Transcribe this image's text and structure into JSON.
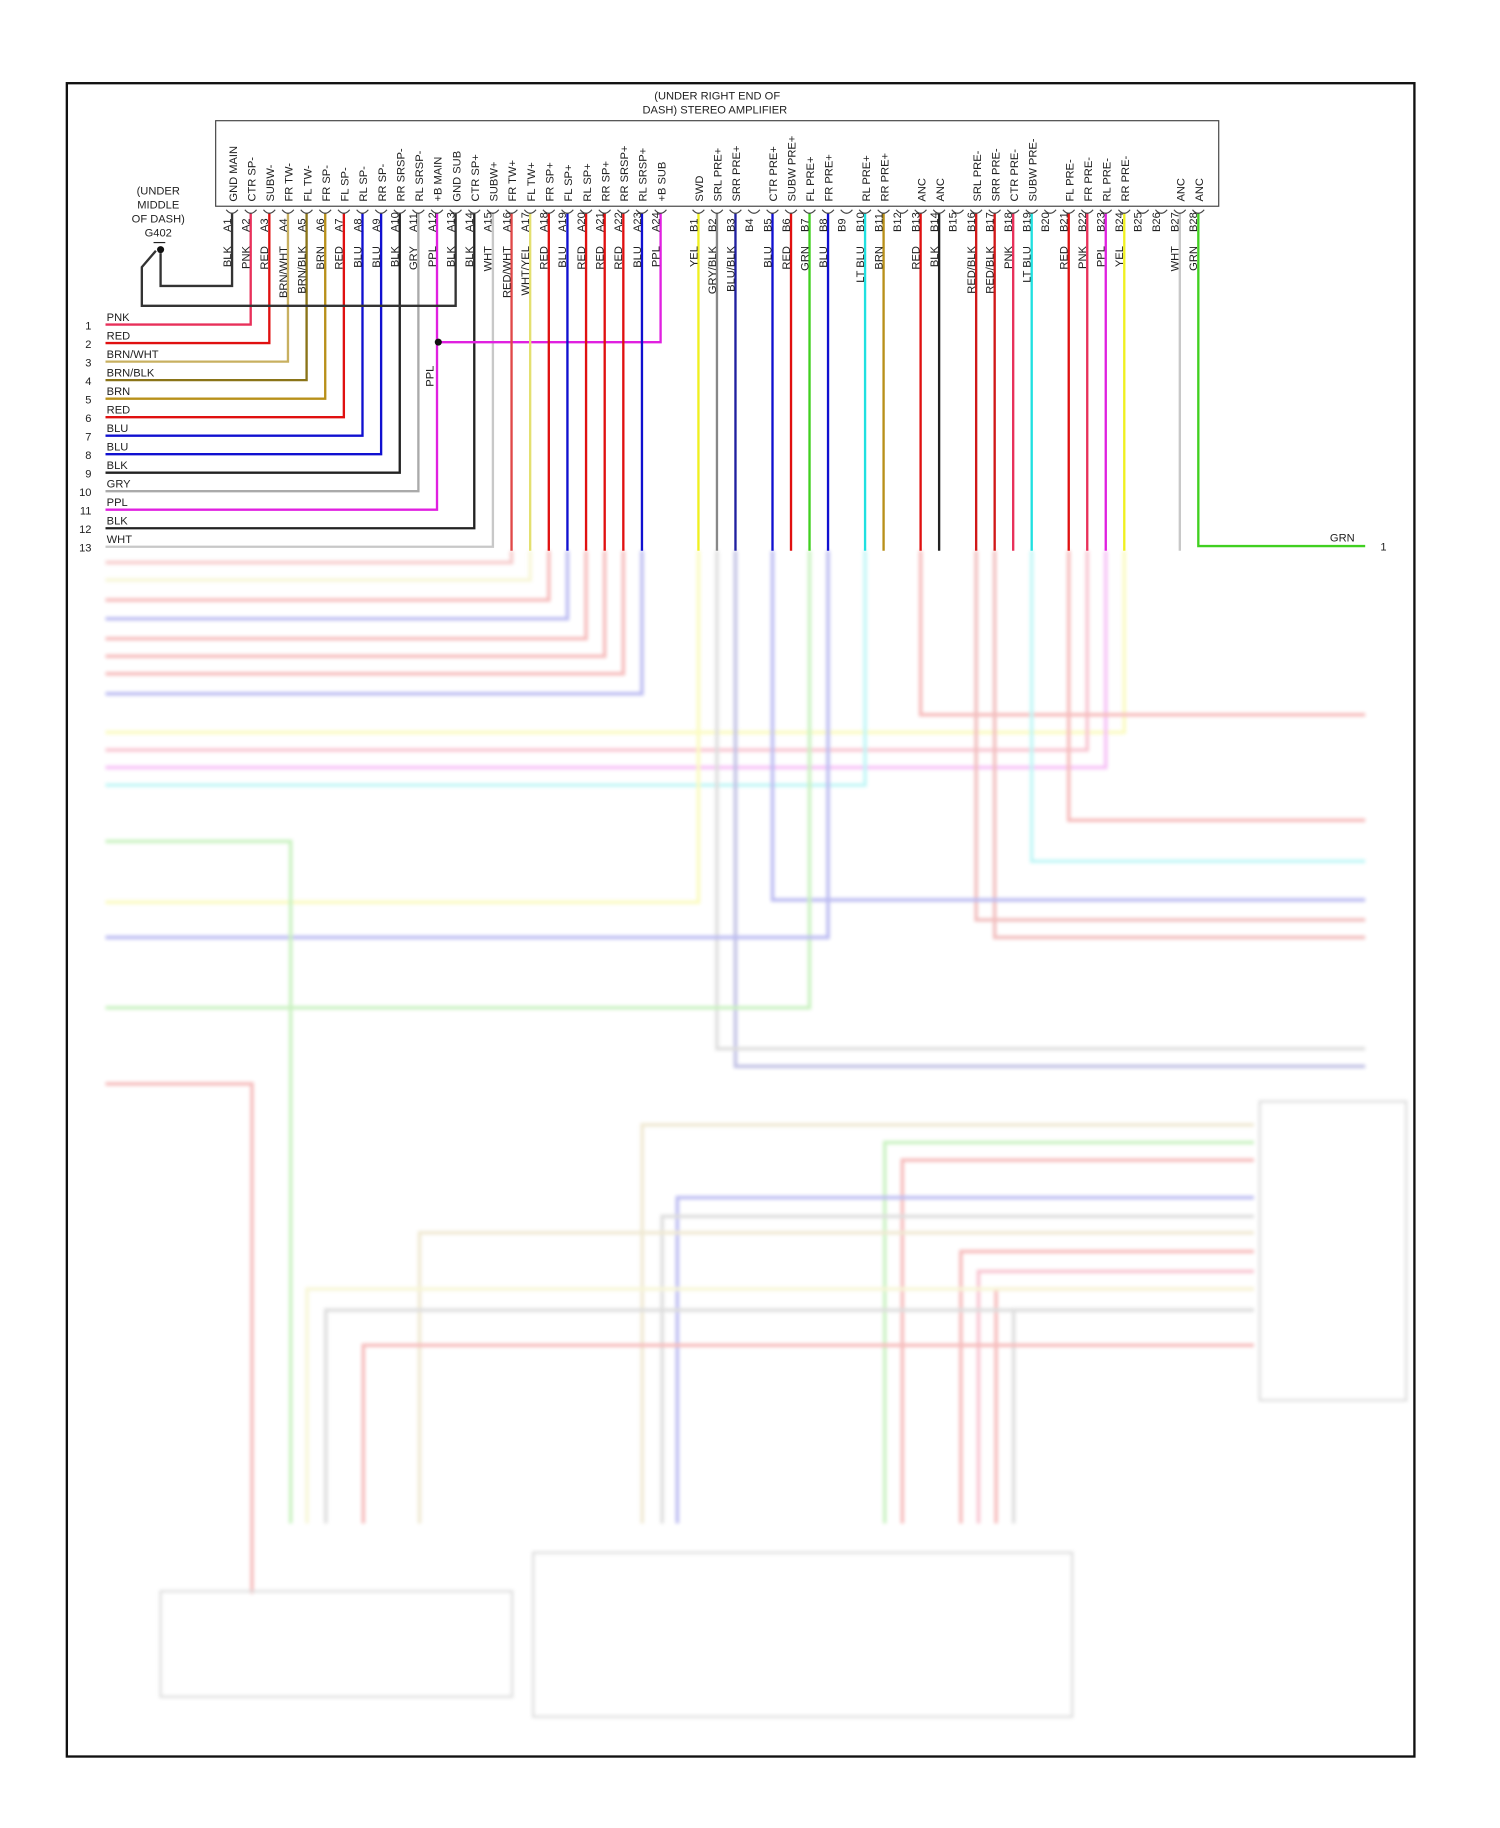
{
  "amplifier": {
    "title_line1": "(UNDER RIGHT END OF",
    "title_line2": "DASH) STEREO AMPLIFIER",
    "pins": [
      {
        "pin": "A1",
        "func": "GND MAIN",
        "wire": "BLK",
        "color": "#222222"
      },
      {
        "pin": "A2",
        "func": "CTR SP-",
        "wire": "PNK",
        "color": "#e8305a"
      },
      {
        "pin": "A3",
        "func": "SUBW-",
        "wire": "RED",
        "color": "#e01010"
      },
      {
        "pin": "A4",
        "func": "FR TW-",
        "wire": "BRN/WHT",
        "color": "#c8b060"
      },
      {
        "pin": "A5",
        "func": "FL TW-",
        "wire": "BRN/BLK",
        "color": "#8a7418"
      },
      {
        "pin": "A6",
        "func": "FR SP-",
        "wire": "BRN",
        "color": "#b8901a"
      },
      {
        "pin": "A7",
        "func": "FL SP-",
        "wire": "RED",
        "color": "#e01010"
      },
      {
        "pin": "A8",
        "func": "RL SP-",
        "wire": "BLU",
        "color": "#1010d0"
      },
      {
        "pin": "A9",
        "func": "RR SP-",
        "wire": "BLU",
        "color": "#1010d0"
      },
      {
        "pin": "A10",
        "func": "RR SRSP-",
        "wire": "BLK",
        "color": "#222222"
      },
      {
        "pin": "A11",
        "func": "RL SRSP-",
        "wire": "GRY",
        "color": "#aaaaaa"
      },
      {
        "pin": "A12",
        "func": "+B MAIN",
        "wire": "PPL",
        "color": "#e020e0"
      },
      {
        "pin": "A13",
        "func": "GND SUB",
        "wire": "BLK",
        "color": "#222222"
      },
      {
        "pin": "A14",
        "func": "CTR SP+",
        "wire": "BLK",
        "color": "#222222"
      },
      {
        "pin": "A15",
        "func": "SUBW+",
        "wire": "WHT",
        "color": "#c8c8c8"
      },
      {
        "pin": "A16",
        "func": "FR TW+",
        "wire": "RED/WHT",
        "color": "#e04848"
      },
      {
        "pin": "A17",
        "func": "FL TW+",
        "wire": "WHT/YEL",
        "color": "#e4e070"
      },
      {
        "pin": "A18",
        "func": "FR SP+",
        "wire": "RED",
        "color": "#e01010"
      },
      {
        "pin": "A19",
        "func": "FL SP+",
        "wire": "BLU",
        "color": "#1010d0"
      },
      {
        "pin": "A20",
        "func": "RL SP+",
        "wire": "RED",
        "color": "#e01010"
      },
      {
        "pin": "A21",
        "func": "RR SP+",
        "wire": "RED",
        "color": "#e01010"
      },
      {
        "pin": "A22",
        "func": "RR SRSP+",
        "wire": "RED",
        "color": "#e01010"
      },
      {
        "pin": "A23",
        "func": "RL SRSP+",
        "wire": "BLU",
        "color": "#1010d0"
      },
      {
        "pin": "A24",
        "func": "+B SUB",
        "wire": "PPL",
        "color": "#e020e0"
      },
      {
        "pin": "B1",
        "func": "SWD",
        "wire": "YEL",
        "color": "#f0f020"
      },
      {
        "pin": "B2",
        "func": "SRL PRE+",
        "wire": "GRY/BLK",
        "color": "#888888"
      },
      {
        "pin": "B3",
        "func": "SRR PRE+",
        "wire": "BLU/BLK",
        "color": "#2020a0"
      },
      {
        "pin": "B4",
        "func": "",
        "wire": "",
        "color": ""
      },
      {
        "pin": "B5",
        "func": "CTR PRE+",
        "wire": "BLU",
        "color": "#1010d0"
      },
      {
        "pin": "B6",
        "func": "SUBW PRE+",
        "wire": "RED",
        "color": "#e01010"
      },
      {
        "pin": "B7",
        "func": "FL PRE+",
        "wire": "GRN",
        "color": "#40d020"
      },
      {
        "pin": "B8",
        "func": "FR PRE+",
        "wire": "BLU",
        "color": "#1010d0"
      },
      {
        "pin": "B9",
        "func": "",
        "wire": "",
        "color": ""
      },
      {
        "pin": "B10",
        "func": "RL PRE+",
        "wire": "LT BLU",
        "color": "#20e0e0"
      },
      {
        "pin": "B11",
        "func": "RR PRE+",
        "wire": "BRN",
        "color": "#b8901a"
      },
      {
        "pin": "B12",
        "func": "",
        "wire": "",
        "color": ""
      },
      {
        "pin": "B13",
        "func": "ANC",
        "wire": "RED",
        "color": "#e01010"
      },
      {
        "pin": "B14",
        "func": "ANC",
        "wire": "BLK",
        "color": "#222222"
      },
      {
        "pin": "B15",
        "func": "",
        "wire": "",
        "color": ""
      },
      {
        "pin": "B16",
        "func": "SRL PRE-",
        "wire": "RED/BLK",
        "color": "#d01818"
      },
      {
        "pin": "B17",
        "func": "SRR PRE-",
        "wire": "RED/BLK",
        "color": "#d01818"
      },
      {
        "pin": "B18",
        "func": "CTR PRE-",
        "wire": "PNK",
        "color": "#e8305a"
      },
      {
        "pin": "B19",
        "func": "SUBW PRE-",
        "wire": "LT BLU",
        "color": "#20e0e0"
      },
      {
        "pin": "B20",
        "func": "",
        "wire": "",
        "color": ""
      },
      {
        "pin": "B21",
        "func": "FL PRE-",
        "wire": "RED",
        "color": "#e01010"
      },
      {
        "pin": "B22",
        "func": "FR PRE-",
        "wire": "PNK",
        "color": "#e8305a"
      },
      {
        "pin": "B23",
        "func": "RL PRE-",
        "wire": "PPL",
        "color": "#e020e0"
      },
      {
        "pin": "B24",
        "func": "RR PRE-",
        "wire": "YEL",
        "color": "#f0f020"
      },
      {
        "pin": "B25",
        "func": "",
        "wire": "",
        "color": ""
      },
      {
        "pin": "B26",
        "func": "",
        "wire": "",
        "color": ""
      },
      {
        "pin": "B27",
        "func": "ANC",
        "wire": "WHT",
        "color": "#c8c8c8"
      },
      {
        "pin": "B28",
        "func": "ANC",
        "wire": "GRN",
        "color": "#40d020"
      }
    ]
  },
  "ground": {
    "line1": "(UNDER",
    "line2": "MIDDLE",
    "line3": "OF DASH)",
    "id": "G402"
  },
  "splice_label": "PPL",
  "left_harness": [
    {
      "num": "1",
      "wire": "PNK",
      "to": "A2"
    },
    {
      "num": "2",
      "wire": "RED",
      "to": "A3"
    },
    {
      "num": "3",
      "wire": "BRN/WHT",
      "to": "A4"
    },
    {
      "num": "4",
      "wire": "BRN/BLK",
      "to": "A5"
    },
    {
      "num": "5",
      "wire": "BRN",
      "to": "A6"
    },
    {
      "num": "6",
      "wire": "RED",
      "to": "A7"
    },
    {
      "num": "7",
      "wire": "BLU",
      "to": "A8"
    },
    {
      "num": "8",
      "wire": "BLU",
      "to": "A9"
    },
    {
      "num": "9",
      "wire": "BLK",
      "to": "A10"
    },
    {
      "num": "10",
      "wire": "GRY",
      "to": "A11"
    },
    {
      "num": "11",
      "wire": "PPL",
      "to": "A12"
    },
    {
      "num": "12",
      "wire": "BLK",
      "to": "A14"
    },
    {
      "num": "13",
      "wire": "WHT",
      "to": "A15"
    }
  ],
  "right_harness": [
    {
      "num": "1",
      "wire": "GRN",
      "to": "B28"
    }
  ]
}
